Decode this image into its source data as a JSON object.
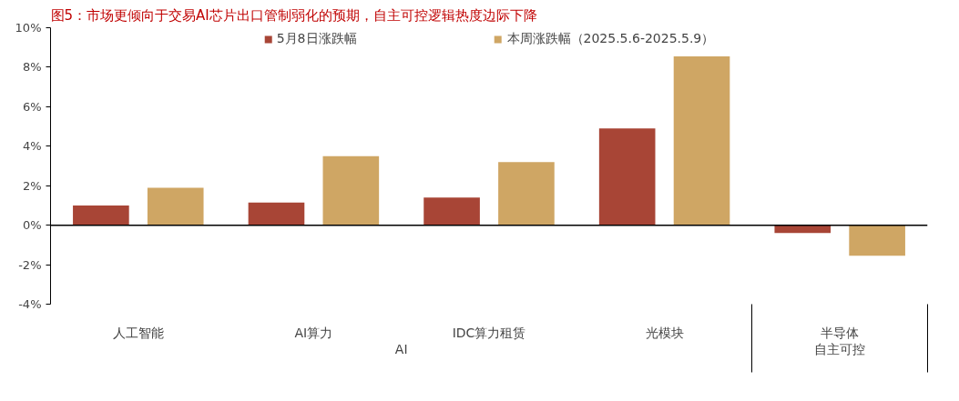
{
  "chart_data": {
    "type": "bar",
    "title": "图5：市场更倾向于交易AI芯片出口管制弱化的预期，自主可控逻辑热度边际下降",
    "categories": [
      "人工智能",
      "AI算力",
      "IDC算力租赁",
      "光模块",
      "半导体"
    ],
    "series": [
      {
        "name": "5月8日涨跌幅",
        "color": "#a84536",
        "values": [
          1.0,
          1.15,
          1.4,
          4.9,
          -0.4
        ]
      },
      {
        "name": "本周涨跌幅（2025.5.6-2025.5.9）",
        "color": "#cfa664",
        "values": [
          1.9,
          3.5,
          3.2,
          8.55,
          -1.55
        ]
      }
    ],
    "annotations": [
      "AI",
      "自主可控"
    ],
    "ylim": [
      -4,
      10
    ],
    "yticks": [
      {
        "value": -4,
        "label": "-4%"
      },
      {
        "value": -2,
        "label": "-2%"
      },
      {
        "value": 0,
        "label": "0%"
      },
      {
        "value": 2,
        "label": "2%"
      },
      {
        "value": 4,
        "label": "4%"
      },
      {
        "value": 6,
        "label": "6%"
      },
      {
        "value": 8,
        "label": "8%"
      },
      {
        "value": 10,
        "label": "10%"
      }
    ],
    "legend": "top"
  }
}
